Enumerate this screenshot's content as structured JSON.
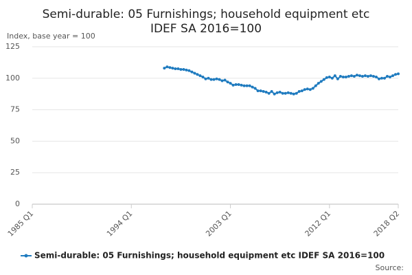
{
  "chart_data": {
    "type": "line",
    "title": [
      "Semi-durable: 05 Furnishings; household equipment etc",
      "IDEF SA 2016=100"
    ],
    "y_label": "Index, base year = 100",
    "source": "Source:",
    "categories": [
      "1985 Q1",
      null,
      null,
      null,
      null,
      null,
      null,
      null,
      null,
      null,
      null,
      null,
      null,
      null,
      null,
      null,
      null,
      null,
      null,
      null,
      null,
      null,
      null,
      null,
      null,
      null,
      null,
      null,
      null,
      null,
      null,
      null,
      null,
      null,
      null,
      null,
      "1994 Q1",
      null,
      null,
      null,
      null,
      null,
      null,
      null,
      null,
      null,
      null,
      null,
      null,
      null,
      null,
      null,
      null,
      null,
      null,
      null,
      null,
      null,
      null,
      null,
      null,
      null,
      null,
      null,
      null,
      null,
      null,
      null,
      null,
      null,
      null,
      null,
      "2003 Q1",
      null,
      null,
      null,
      null,
      null,
      null,
      null,
      null,
      null,
      null,
      null,
      null,
      null,
      null,
      null,
      null,
      null,
      null,
      null,
      null,
      null,
      null,
      null,
      null,
      null,
      null,
      null,
      null,
      null,
      null,
      null,
      null,
      null,
      null,
      null,
      "2012 Q1",
      null,
      null,
      null,
      null,
      null,
      null,
      null,
      null,
      null,
      null,
      null,
      null,
      null,
      null,
      null,
      null,
      null,
      null,
      null,
      null,
      null,
      null,
      null,
      null,
      "2018 Q2"
    ],
    "series": [
      {
        "name": "Semi-durable: 05 Furnishings; household equipment etc IDEF SA 2016=100",
        "color": "#1f7bbf",
        "values": [
          null,
          null,
          null,
          null,
          null,
          null,
          null,
          null,
          null,
          null,
          null,
          null,
          null,
          null,
          null,
          null,
          null,
          null,
          null,
          null,
          null,
          null,
          null,
          null,
          null,
          null,
          null,
          null,
          null,
          null,
          null,
          null,
          null,
          null,
          null,
          null,
          null,
          null,
          null,
          null,
          null,
          null,
          null,
          null,
          null,
          null,
          null,
          null,
          108,
          109,
          108.5,
          108,
          107.5,
          107.5,
          107,
          107,
          106.5,
          106,
          105,
          104,
          103,
          102,
          101,
          99.5,
          100,
          99,
          99,
          99.5,
          99,
          98,
          98.5,
          97,
          96,
          94.5,
          95,
          95,
          94.5,
          94,
          94,
          94,
          93,
          92,
          90,
          90,
          89.5,
          89,
          88,
          89.5,
          87.5,
          88.5,
          89,
          88,
          88,
          88.5,
          88,
          87.5,
          88,
          89.5,
          90,
          91,
          91.5,
          91,
          92,
          94,
          96,
          97.5,
          99,
          100.5,
          101,
          100,
          102,
          99.5,
          101.5,
          101,
          101,
          101.5,
          102,
          101.5,
          102.5,
          102,
          101.5,
          102,
          101.5,
          102,
          101.5,
          101,
          99.5,
          100,
          100,
          101.5,
          101,
          102,
          103,
          103.5
        ]
      }
    ],
    "ylim": [
      0,
      125
    ],
    "yticks": [
      0,
      25,
      50,
      75,
      100,
      125
    ],
    "grid": true
  }
}
